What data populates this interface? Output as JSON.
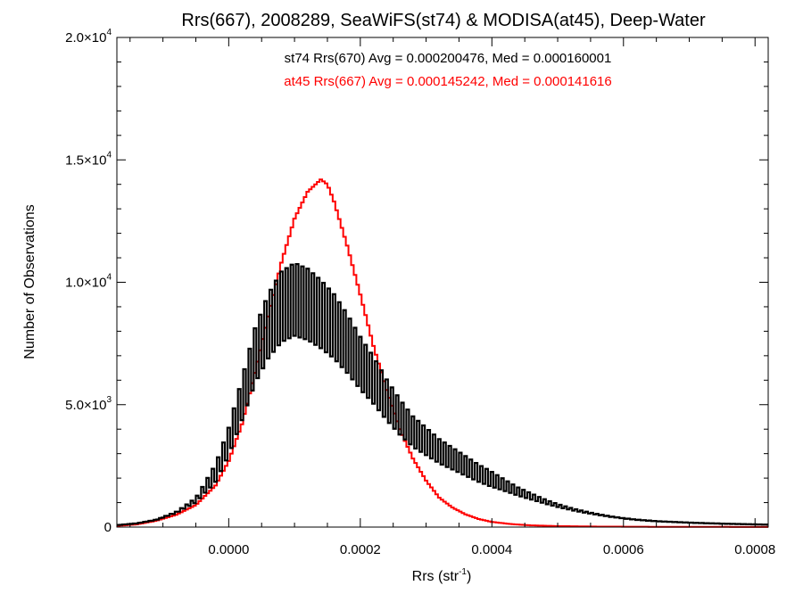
{
  "chart_data": {
    "type": "histogram",
    "title": "Rrs(667), 2008289, SeaWiFS(st74) & MODISA(at45), Deep-Water",
    "xlabel": "Rrs (str",
    "xlabel_sup": "-1",
    "xlabel_end": ")",
    "ylabel": "Number of Observations",
    "xlim": [
      -0.00017,
      0.00082
    ],
    "ylim": [
      0,
      20000
    ],
    "x_ticks": [
      {
        "value": 0.0,
        "label": "0.0000"
      },
      {
        "value": 0.0002,
        "label": "0.0002"
      },
      {
        "value": 0.0004,
        "label": "0.0004"
      },
      {
        "value": 0.0006,
        "label": "0.0006"
      },
      {
        "value": 0.0008,
        "label": "0.0008"
      }
    ],
    "y_ticks": [
      {
        "value": 0,
        "mant": "0",
        "exp": ""
      },
      {
        "value": 5000,
        "mant": "5.0×10",
        "exp": "3"
      },
      {
        "value": 10000,
        "mant": "1.0×10",
        "exp": "4"
      },
      {
        "value": 15000,
        "mant": "1.5×10",
        "exp": "4"
      },
      {
        "value": 20000,
        "mant": "2.0×10",
        "exp": "4"
      }
    ],
    "series": [
      {
        "name": "st74 Rrs(670) Avg = 0.000200476, Med = 0.000160001",
        "color": "#000000",
        "style": "alternating-bins",
        "bin_width": 4e-06,
        "points": [
          [
            -0.00017,
            80
          ],
          [
            -0.00014,
            150
          ],
          [
            -0.00011,
            300
          ],
          [
            -8e-05,
            600
          ],
          [
            -5e-05,
            1100
          ],
          [
            -2e-05,
            2200
          ],
          [
            0.0,
            3500
          ],
          [
            2e-05,
            5200
          ],
          [
            4e-05,
            7000
          ],
          [
            6e-05,
            8200
          ],
          [
            8e-05,
            9000
          ],
          [
            0.0001,
            9300
          ],
          [
            0.00012,
            9100
          ],
          [
            0.00014,
            8700
          ],
          [
            0.00016,
            8200
          ],
          [
            0.00018,
            7500
          ],
          [
            0.0002,
            6700
          ],
          [
            0.00022,
            6000
          ],
          [
            0.00024,
            5200
          ],
          [
            0.00026,
            4500
          ],
          [
            0.00028,
            3900
          ],
          [
            0.0003,
            3500
          ],
          [
            0.00032,
            3100
          ],
          [
            0.00034,
            2800
          ],
          [
            0.00036,
            2500
          ],
          [
            0.00038,
            2200
          ],
          [
            0.0004,
            1950
          ],
          [
            0.00042,
            1700
          ],
          [
            0.00044,
            1450
          ],
          [
            0.00046,
            1250
          ],
          [
            0.00048,
            1050
          ],
          [
            0.0005,
            880
          ],
          [
            0.00052,
            740
          ],
          [
            0.00054,
            620
          ],
          [
            0.00056,
            520
          ],
          [
            0.00058,
            430
          ],
          [
            0.0006,
            360
          ],
          [
            0.00062,
            300
          ],
          [
            0.00065,
            240
          ],
          [
            0.0007,
            180
          ],
          [
            0.00075,
            140
          ],
          [
            0.00082,
            100
          ]
        ]
      },
      {
        "name": "at45 Rrs(667) Avg = 0.000145242, Med = 0.000141616",
        "color": "#ff0000",
        "style": "step",
        "bin_width": 4e-06,
        "points": [
          [
            -0.00017,
            50
          ],
          [
            -0.00014,
            110
          ],
          [
            -0.00011,
            260
          ],
          [
            -8e-05,
            500
          ],
          [
            -5e-05,
            900
          ],
          [
            -2e-05,
            1700
          ],
          [
            0.0,
            2700
          ],
          [
            2e-05,
            4200
          ],
          [
            4e-05,
            6300
          ],
          [
            6e-05,
            8600
          ],
          [
            8e-05,
            10800
          ],
          [
            0.0001,
            12600
          ],
          [
            0.00012,
            13700
          ],
          [
            0.00014,
            14200
          ],
          [
            0.00015,
            14000
          ],
          [
            0.00016,
            13300
          ],
          [
            0.00018,
            11500
          ],
          [
            0.0002,
            9500
          ],
          [
            0.00022,
            7400
          ],
          [
            0.00024,
            5600
          ],
          [
            0.00026,
            4000
          ],
          [
            0.00028,
            2800
          ],
          [
            0.0003,
            1900
          ],
          [
            0.00032,
            1200
          ],
          [
            0.00034,
            800
          ],
          [
            0.00036,
            520
          ],
          [
            0.00038,
            330
          ],
          [
            0.0004,
            210
          ],
          [
            0.00043,
            120
          ],
          [
            0.00046,
            70
          ],
          [
            0.0005,
            40
          ],
          [
            0.00056,
            20
          ],
          [
            0.00065,
            10
          ],
          [
            0.00082,
            5
          ]
        ]
      }
    ]
  }
}
